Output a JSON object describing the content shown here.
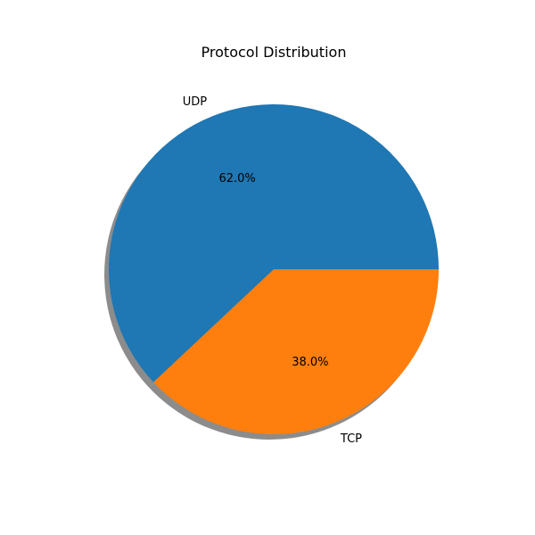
{
  "chart_data": {
    "type": "pie",
    "title": "Protocol Distribution",
    "categories": [
      "UDP",
      "TCP"
    ],
    "values": [
      62.0,
      38.0
    ],
    "percent_labels": [
      "62.0%",
      "38.0%"
    ],
    "colors": [
      "#1f77b4",
      "#ff7f0e"
    ],
    "start_angle_deg": 0,
    "direction": "counterclockwise",
    "shadow": true,
    "legend": "none"
  }
}
